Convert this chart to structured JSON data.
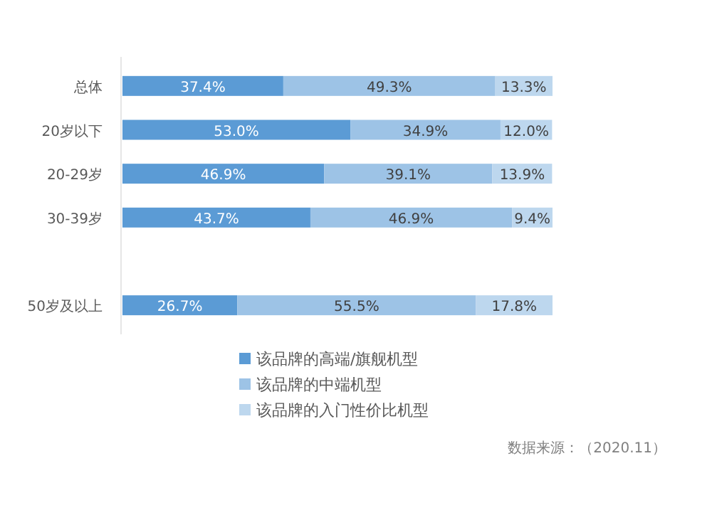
{
  "chart_data": {
    "type": "bar",
    "orientation": "horizontal",
    "stacked": true,
    "legend": "bottom",
    "tick_labels": "y",
    "categories": [
      "总体",
      "20岁以下",
      "20-29岁",
      "30-39岁",
      null,
      "50岁及以上"
    ],
    "series": [
      {
        "name": "该品牌的高端/旗舰机型",
        "color": "#5b9bd5",
        "values": [
          37.4,
          53.0,
          46.9,
          43.7,
          null,
          26.7
        ],
        "value_labels": [
          "37.4%",
          "53.0%",
          "46.9%",
          "43.7%",
          null,
          "26.7%"
        ]
      },
      {
        "name": "该品牌的中端机型",
        "color": "#9dc3e6",
        "values": [
          49.3,
          34.9,
          39.1,
          46.9,
          null,
          55.5
        ],
        "value_labels": [
          "49.3%",
          "34.9%",
          "39.1%",
          "46.9%",
          null,
          "55.5%"
        ]
      },
      {
        "name": "该品牌的入门性价比机型",
        "color": "#bdd7ee",
        "values": [
          13.3,
          12.0,
          13.9,
          9.4,
          null,
          17.8
        ],
        "value_labels": [
          "13.3%",
          "12.0%",
          "13.9%",
          "9.4%",
          null,
          "17.8%"
        ]
      }
    ],
    "annotations": [
      "数据来源：（2020.11）"
    ]
  }
}
